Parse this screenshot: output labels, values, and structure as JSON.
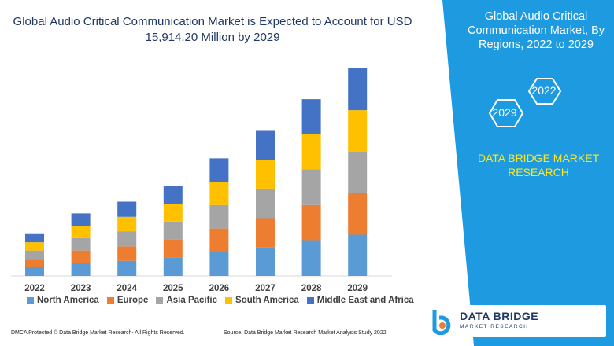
{
  "chart_data": {
    "type": "bar",
    "stacked": true,
    "title": "Global Audio Critical Communication Market is Expected to Account for USD 15,914.20 Million by 2029",
    "categories": [
      "2022",
      "2023",
      "2024",
      "2025",
      "2026",
      "2027",
      "2028",
      "2029"
    ],
    "series": [
      {
        "name": "North America",
        "color": "#5b9bd5",
        "values": [
          1.3,
          1.9,
          2.2,
          2.7,
          3.5,
          4.2,
          5.2,
          6.0
        ]
      },
      {
        "name": "Europe",
        "color": "#ed7d31",
        "values": [
          1.2,
          1.8,
          2.1,
          2.6,
          3.4,
          4.2,
          5.1,
          6.0
        ]
      },
      {
        "name": "Asia Pacific",
        "color": "#a5a5a5",
        "values": [
          1.2,
          1.8,
          2.2,
          2.6,
          3.4,
          4.3,
          5.2,
          6.1
        ]
      },
      {
        "name": "South America",
        "color": "#ffc000",
        "values": [
          1.2,
          1.8,
          2.1,
          2.6,
          3.4,
          4.2,
          5.1,
          6.0
        ]
      },
      {
        "name": "Middle East and Africa",
        "color": "#4472c4",
        "values": [
          1.3,
          1.8,
          2.2,
          2.6,
          3.4,
          4.3,
          5.1,
          6.1
        ]
      }
    ],
    "xlabel": "",
    "ylabel": "",
    "ylim": [
      0,
      32
    ],
    "grid": false,
    "legend": "bottom"
  },
  "panel": {
    "title": "Global Audio Critical Communication Market, By Regions, 2022 to 2029",
    "hex_years": [
      "2022",
      "2029"
    ],
    "organization": "DATA BRIDGE MARKET RESEARCH"
  },
  "footer": {
    "left": "DMCA Protected © Data Bridge Market Research- All Rights Reserved.",
    "right": "Source: Data Bridge Market Research Market Analysis Study 2022"
  },
  "logo": {
    "name": "DATA BRIDGE",
    "sub": "MARKET RESEARCH"
  },
  "colors": {
    "panel_bg": "#1e9be0",
    "panel_accent": "#ffe71f",
    "title_text": "#1f3864"
  }
}
